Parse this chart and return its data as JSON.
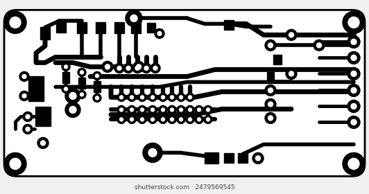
{
  "bg_color": "#f0f0f0",
  "board_color": "#ffffff",
  "line_color": "#000000",
  "figsize": [
    5.32,
    2.8
  ],
  "dpi": 100
}
